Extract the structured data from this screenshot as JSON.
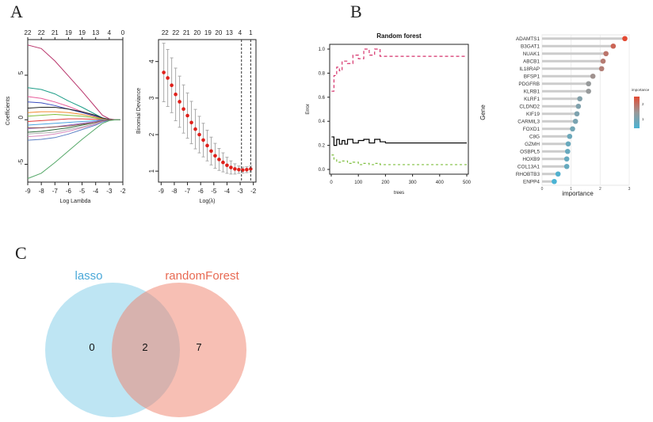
{
  "panel_labels": {
    "a": "A",
    "b": "B",
    "c": "C"
  },
  "chart_data": [
    {
      "id": "lasso_coef",
      "type": "line",
      "xlabel": "Log Lambda",
      "ylabel": "Coefficients",
      "xlim": [
        -9,
        -2
      ],
      "ylim": [
        -7,
        9
      ],
      "xticks": [
        "-9",
        "-8",
        "-7",
        "-6",
        "-5",
        "-4",
        "-3",
        "-2"
      ],
      "yticks": [
        "-5",
        "0",
        "5"
      ],
      "top_ticks": [
        "22",
        "22",
        "21",
        "19",
        "19",
        "13",
        "4",
        "0"
      ],
      "x": [
        -9,
        -8,
        -7,
        -6,
        -5,
        -4,
        -3.5,
        -3,
        -2.5,
        -2.2
      ],
      "series": [
        {
          "color": "#b8336a",
          "values": [
            8.4,
            8.0,
            6.6,
            4.9,
            3.2,
            1.4,
            0.5,
            0.1,
            0,
            0
          ]
        },
        {
          "color": "#1f9e89",
          "values": [
            3.6,
            3.4,
            2.9,
            2.1,
            1.4,
            0.6,
            0.2,
            0.05,
            0,
            0
          ]
        },
        {
          "color": "#e85d9b",
          "values": [
            2.6,
            2.4,
            2.0,
            1.5,
            0.9,
            0.4,
            0.1,
            0,
            0,
            0
          ]
        },
        {
          "color": "#3b4cc0",
          "values": [
            2.0,
            1.9,
            1.6,
            1.2,
            0.8,
            0.4,
            0.15,
            0.03,
            0,
            0
          ]
        },
        {
          "color": "#222222",
          "values": [
            1.3,
            1.4,
            1.4,
            1.2,
            0.9,
            0.5,
            0.2,
            0.05,
            0,
            0
          ]
        },
        {
          "color": "#f08b2e",
          "values": [
            0.8,
            0.9,
            0.9,
            0.8,
            0.6,
            0.3,
            0.1,
            0,
            0,
            0
          ]
        },
        {
          "color": "#7fbf3f",
          "values": [
            0.4,
            0.5,
            0.6,
            0.5,
            0.4,
            0.2,
            0.05,
            0,
            0,
            0
          ]
        },
        {
          "color": "#e23a3a",
          "values": [
            -0.2,
            -0.1,
            0.0,
            0.1,
            0.1,
            0.05,
            0,
            0,
            0,
            0
          ]
        },
        {
          "color": "#4aa3df",
          "values": [
            -0.6,
            -0.5,
            -0.4,
            -0.3,
            -0.2,
            -0.1,
            0,
            0,
            0,
            0
          ]
        },
        {
          "color": "#9a6fd0",
          "values": [
            -1.0,
            -0.9,
            -0.8,
            -0.6,
            -0.4,
            -0.2,
            -0.05,
            0,
            0,
            0
          ]
        },
        {
          "color": "#2d6b3c",
          "values": [
            -1.4,
            -1.3,
            -1.1,
            -0.9,
            -0.6,
            -0.3,
            -0.1,
            0,
            0,
            0
          ]
        },
        {
          "color": "#d98cbf",
          "values": [
            -1.9,
            -1.8,
            -1.6,
            -1.3,
            -0.9,
            -0.5,
            -0.2,
            -0.05,
            0,
            0
          ]
        },
        {
          "color": "#5b7fc4",
          "values": [
            -2.3,
            -2.2,
            -2.0,
            -1.6,
            -1.1,
            -0.6,
            -0.25,
            -0.05,
            0,
            0
          ]
        },
        {
          "color": "#b0b0b0",
          "values": [
            -1.6,
            -1.5,
            -1.4,
            -1.1,
            -0.8,
            -0.4,
            -0.1,
            0,
            0,
            0
          ]
        },
        {
          "color": "#8c564b",
          "values": [
            -0.9,
            -0.9,
            -0.8,
            -0.7,
            -0.5,
            -0.3,
            -0.1,
            0,
            0,
            0
          ]
        },
        {
          "color": "#55a868",
          "values": [
            -6.6,
            -6.0,
            -4.8,
            -3.5,
            -2.2,
            -1.0,
            -0.4,
            -0.1,
            0,
            0
          ]
        }
      ]
    },
    {
      "id": "lasso_cv",
      "type": "scatter",
      "xlabel": "Log(λ)",
      "ylabel": "Binomial Deviance",
      "xlim": [
        -9.2,
        -1.8
      ],
      "ylim": [
        0.7,
        4.6
      ],
      "xticks": [
        "-9",
        "-8",
        "-7",
        "-6",
        "-5",
        "-4",
        "-3",
        "-2"
      ],
      "yticks": [
        "1",
        "2",
        "3",
        "4"
      ],
      "top_ticks": [
        "22",
        "22",
        "21",
        "20",
        "19",
        "20",
        "13",
        "4",
        "1"
      ],
      "vlines": [
        -2.9,
        -2.2
      ],
      "x": [
        -8.8,
        -8.5,
        -8.2,
        -7.9,
        -7.6,
        -7.3,
        -7.0,
        -6.7,
        -6.4,
        -6.1,
        -5.8,
        -5.5,
        -5.2,
        -4.9,
        -4.6,
        -4.3,
        -4.0,
        -3.7,
        -3.4,
        -3.1,
        -2.8,
        -2.5,
        -2.2
      ],
      "values": [
        3.7,
        3.55,
        3.35,
        3.1,
        2.9,
        2.7,
        2.52,
        2.33,
        2.15,
        2.0,
        1.85,
        1.7,
        1.55,
        1.42,
        1.32,
        1.24,
        1.16,
        1.1,
        1.06,
        1.04,
        1.03,
        1.04,
        1.06
      ],
      "err": [
        0.8,
        0.78,
        0.75,
        0.72,
        0.7,
        0.66,
        0.62,
        0.58,
        0.54,
        0.5,
        0.46,
        0.42,
        0.38,
        0.34,
        0.3,
        0.26,
        0.22,
        0.18,
        0.14,
        0.1,
        0.08,
        0.08,
        0.08
      ]
    },
    {
      "id": "rf_error",
      "type": "line",
      "title": "Random forest",
      "xlabel": "trees",
      "ylabel": "Error",
      "xlim": [
        0,
        500
      ],
      "ylim": [
        0,
        1
      ],
      "xticks": [
        "0",
        "100",
        "200",
        "300",
        "400",
        "500"
      ],
      "yticks": [
        "0.0",
        "0.2",
        "0.4",
        "0.6",
        "0.8",
        "1.0"
      ],
      "series": [
        {
          "color": "#000000",
          "dash": "",
          "x": [
            1,
            10,
            20,
            30,
            40,
            50,
            60,
            80,
            100,
            120,
            140,
            160,
            180,
            200,
            300,
            400,
            500
          ],
          "values": [
            0.27,
            0.2,
            0.25,
            0.21,
            0.24,
            0.21,
            0.25,
            0.22,
            0.24,
            0.25,
            0.22,
            0.25,
            0.23,
            0.22,
            0.22,
            0.22,
            0.22
          ]
        },
        {
          "color": "#d6336c",
          "dash": "4,3",
          "x": [
            1,
            10,
            20,
            30,
            40,
            60,
            80,
            100,
            120,
            140,
            160,
            180,
            200,
            300,
            400,
            500
          ],
          "values": [
            0.65,
            0.78,
            0.85,
            0.82,
            0.9,
            0.88,
            0.95,
            0.92,
            1.0,
            0.95,
            1.0,
            0.94,
            0.94,
            0.94,
            0.94,
            0.94
          ]
        },
        {
          "color": "#7fbf3f",
          "dash": "3,3",
          "x": [
            1,
            10,
            20,
            40,
            60,
            80,
            100,
            120,
            140,
            160,
            180,
            200,
            300,
            400,
            500
          ],
          "values": [
            0.12,
            0.08,
            0.06,
            0.07,
            0.05,
            0.06,
            0.04,
            0.05,
            0.04,
            0.05,
            0.04,
            0.04,
            0.04,
            0.04,
            0.04
          ]
        }
      ]
    },
    {
      "id": "rf_importance",
      "type": "scatter",
      "xlabel": "importance",
      "ylabel": "Gene",
      "xlim": [
        0,
        3
      ],
      "xticks": [
        "0",
        "1",
        "2",
        "3"
      ],
      "legend_title": "importance",
      "legend_ticks": [
        "2",
        "1"
      ],
      "legend_colors": [
        "#e34a33",
        "#4ab3d4"
      ],
      "categories": [
        "ADAMTS1",
        "B3GAT1",
        "NUAK1",
        "ABCB1",
        "IL18RAP",
        "BFSP1",
        "PDGFRB",
        "KLRB1",
        "KLRF1",
        "CLDND2",
        "KIF19",
        "CARMIL3",
        "FOXD1",
        "C8G",
        "GZMH",
        "OSBPL5",
        "HOXB9",
        "COL13A1",
        "RHOBTB3",
        "ENPP4"
      ],
      "values": [
        2.85,
        2.45,
        2.2,
        2.1,
        2.05,
        1.75,
        1.6,
        1.6,
        1.3,
        1.25,
        1.2,
        1.15,
        1.05,
        0.95,
        0.9,
        0.88,
        0.85,
        0.85,
        0.55,
        0.42
      ]
    }
  ],
  "venn": {
    "left_label": "lasso",
    "right_label": "randomForest",
    "left_only": "0",
    "overlap": "2",
    "right_only": "7",
    "left_color": "#7ecbe8",
    "right_color": "#f07f6a"
  }
}
